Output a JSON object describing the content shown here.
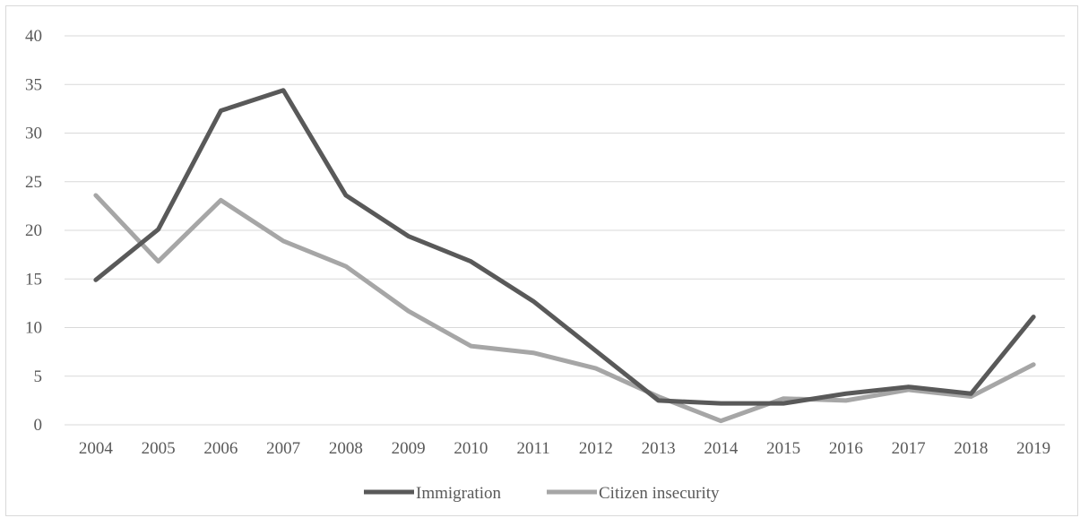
{
  "chart_data": {
    "type": "line",
    "title": "",
    "xlabel": "",
    "ylabel": "",
    "categories": [
      "2004",
      "2005",
      "2006",
      "2007",
      "2008",
      "2009",
      "2010",
      "2011",
      "2012",
      "2013",
      "2014",
      "2015",
      "2016",
      "2017",
      "2018",
      "2019"
    ],
    "ylim": [
      0,
      40
    ],
    "yticks": [
      0,
      5,
      10,
      15,
      20,
      25,
      30,
      35,
      40
    ],
    "grid": true,
    "legend": "bottom",
    "series": [
      {
        "name": "Immigration",
        "color": "#595959",
        "values": [
          14.9,
          20.1,
          32.3,
          34.4,
          23.6,
          19.4,
          16.8,
          12.7,
          7.6,
          2.5,
          2.2,
          2.2,
          3.2,
          3.9,
          3.2,
          11.1
        ]
      },
      {
        "name": "Citizen insecurity",
        "color": "#a6a6a6",
        "values": [
          23.6,
          16.8,
          23.1,
          18.9,
          16.3,
          11.7,
          8.1,
          7.4,
          5.8,
          2.9,
          0.4,
          2.7,
          2.5,
          3.6,
          2.9,
          6.2
        ]
      }
    ]
  }
}
